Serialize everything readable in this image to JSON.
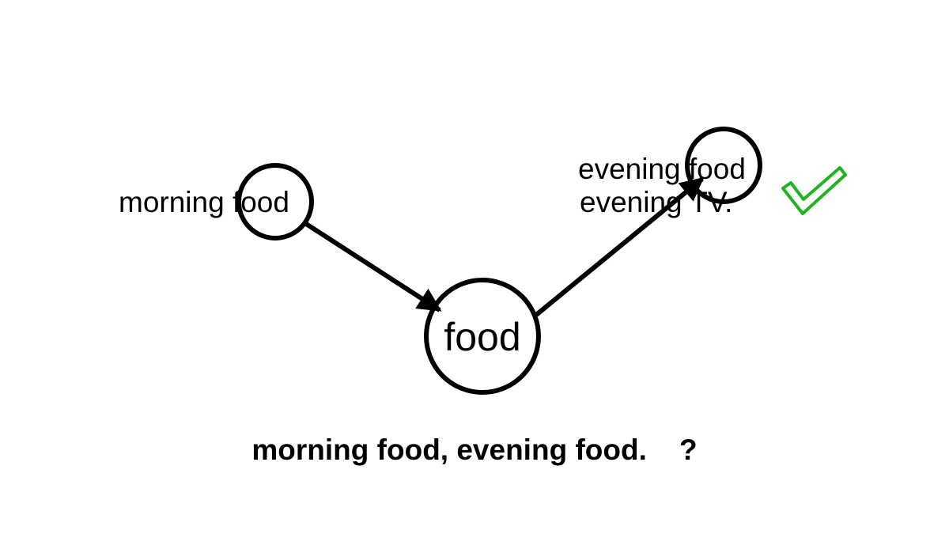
{
  "diagram": {
    "nodes": {
      "start": {
        "label": "morning food"
      },
      "center": {
        "label": "food"
      },
      "end": {
        "label": "evening food",
        "alt_label": "evening TV."
      }
    },
    "edges": [
      {
        "from": "start",
        "to": "center"
      },
      {
        "from": "center",
        "to": "end"
      }
    ],
    "check_icon": "checkmark-icon"
  },
  "caption": "morning food, evening food.    ?",
  "colors": {
    "stroke": "#000000",
    "check": "#22b322"
  }
}
